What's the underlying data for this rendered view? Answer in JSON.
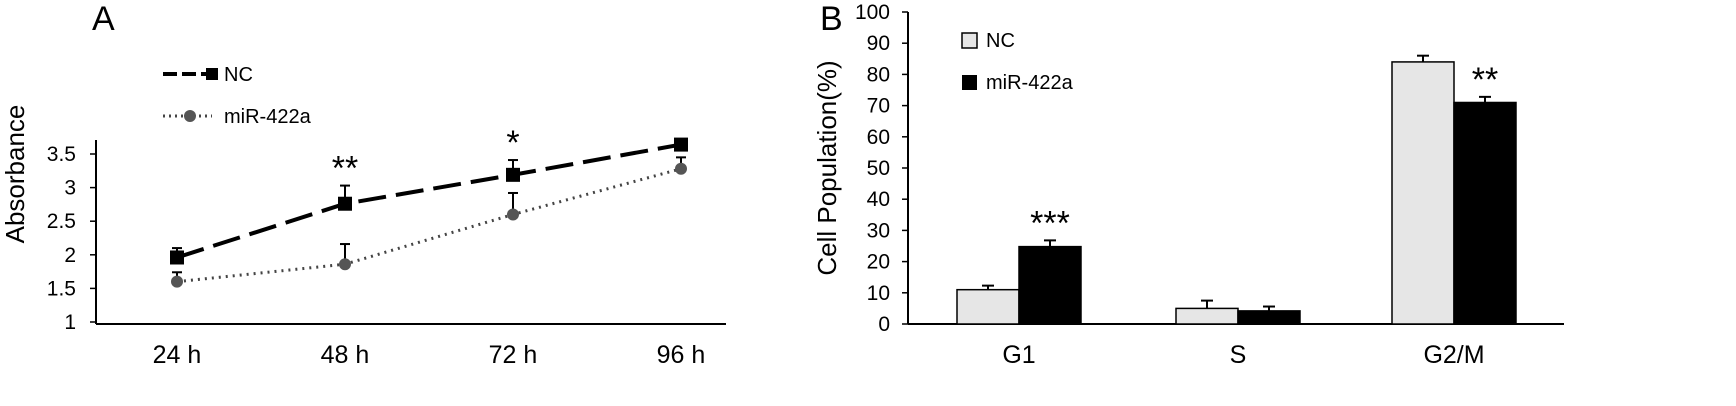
{
  "chart_data": [
    {
      "panel": "A",
      "type": "line",
      "ylabel": "Absorbance",
      "xlabel": "",
      "ylim": [
        1,
        3.5
      ],
      "yticks": [
        "1",
        "1.5",
        "2",
        "2.5",
        "3",
        "3.5"
      ],
      "categories": [
        "24 h",
        "48 h",
        "72 h",
        "96 h"
      ],
      "series": [
        {
          "name": "NC",
          "style": "dashed",
          "marker": "square",
          "values": [
            1.96,
            2.76,
            3.19,
            3.64
          ],
          "errors": [
            0.14,
            0.27,
            0.22,
            0
          ]
        },
        {
          "name": "miR-422a",
          "style": "dotted",
          "marker": "circle",
          "values": [
            1.6,
            1.86,
            2.6,
            3.28
          ],
          "errors": [
            0.14,
            0.3,
            0.32,
            0.17
          ]
        }
      ],
      "annotations": [
        {
          "category": "48 h",
          "text": "**"
        },
        {
          "category": "72 h",
          "text": "*"
        }
      ]
    },
    {
      "panel": "B",
      "type": "bar",
      "ylabel": "Cell Population(%)",
      "xlabel": "",
      "ylim": [
        0,
        100
      ],
      "yticks": [
        "0",
        "10",
        "20",
        "30",
        "40",
        "50",
        "60",
        "70",
        "80",
        "90",
        "100"
      ],
      "categories": [
        "G1",
        "S",
        "G2/M"
      ],
      "series": [
        {
          "name": "NC",
          "color": "#e6e6e6",
          "values": [
            11,
            5,
            84
          ],
          "errors": [
            1.3,
            2.5,
            2
          ]
        },
        {
          "name": "miR-422a",
          "color": "#000000",
          "values": [
            24.8,
            4.2,
            71
          ],
          "errors": [
            2,
            1.4,
            1.8
          ]
        }
      ],
      "annotations": [
        {
          "category": "G1",
          "text": "***"
        },
        {
          "category": "G2/M",
          "text": "**"
        }
      ]
    }
  ]
}
